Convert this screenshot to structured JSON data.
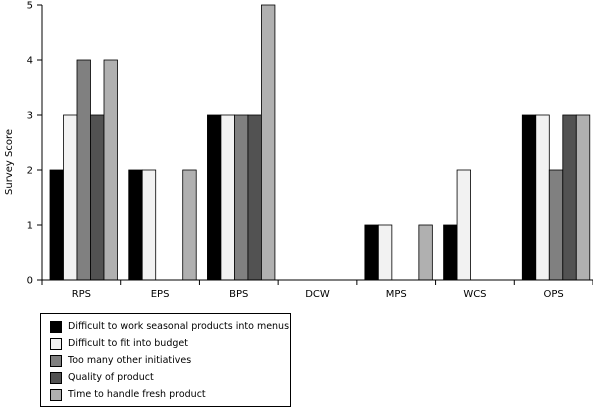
{
  "chart_data": {
    "type": "bar",
    "ylabel": "Survey Score",
    "xlabel": "",
    "ylim": [
      0,
      5
    ],
    "yticks": [
      "0",
      "1",
      "2",
      "3",
      "4",
      "5"
    ],
    "grid": false,
    "legend_position": "bottom-left",
    "categories": [
      "RPS",
      "EPS",
      "BPS",
      "DCW",
      "MPS",
      "WCS",
      "OPS"
    ],
    "series": [
      {
        "name": "Difficult to work seasonal products into menus",
        "color": "#000000",
        "values": [
          2,
          2,
          3,
          0,
          1,
          1,
          3
        ]
      },
      {
        "name": "Difficult to fit into budget",
        "color": "#f2f2f2",
        "values": [
          3,
          2,
          3,
          0,
          1,
          2,
          3
        ]
      },
      {
        "name": "Too many other initiatives",
        "color": "#808080",
        "values": [
          4,
          0,
          3,
          0,
          0,
          0,
          2
        ]
      },
      {
        "name": "Quality of product",
        "color": "#525252",
        "values": [
          3,
          0,
          3,
          0,
          0,
          0,
          3
        ]
      },
      {
        "name": "Time to handle fresh product",
        "color": "#b0b0b0",
        "values": [
          4,
          2,
          5,
          0,
          1,
          0,
          3
        ]
      }
    ]
  }
}
